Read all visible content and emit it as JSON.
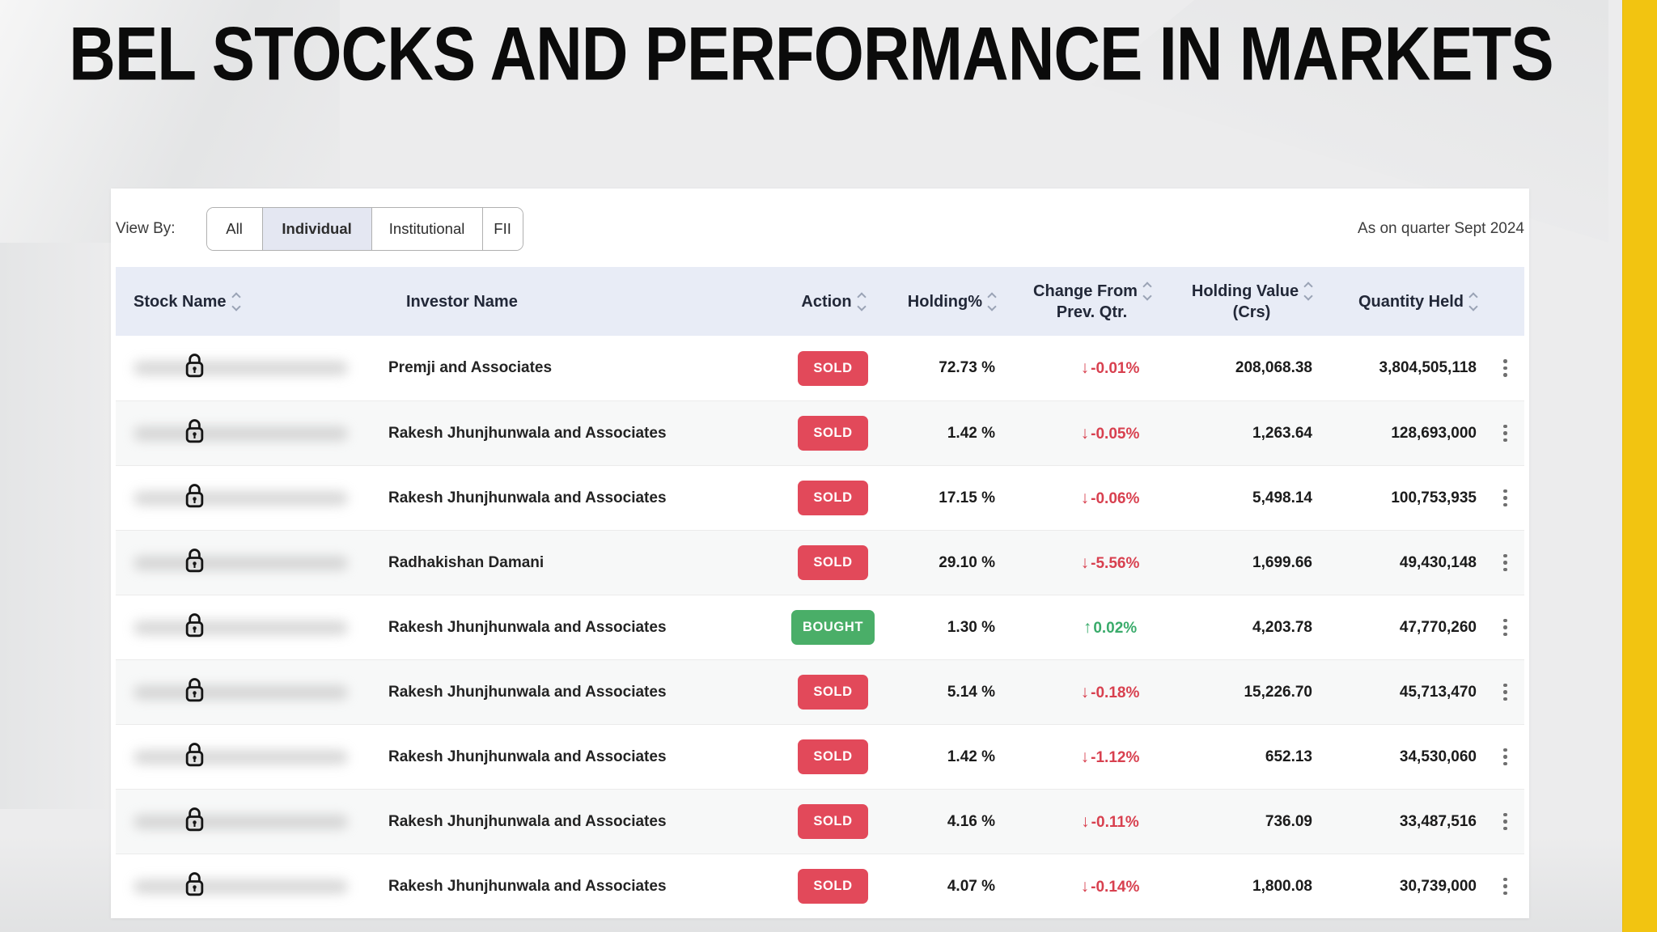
{
  "page": {
    "title": "BEL STOCKS AND PERFORMANCE IN MARKETS"
  },
  "filter": {
    "label": "View By:",
    "options": [
      {
        "label": "All",
        "selected": false
      },
      {
        "label": "Individual",
        "selected": true
      },
      {
        "label": "Institutional",
        "selected": false
      },
      {
        "label": "FII",
        "selected": false
      }
    ],
    "as_on": "As on quarter Sept 2024"
  },
  "table": {
    "columns": [
      {
        "label": "Stock Name",
        "sortable": true,
        "align": "left"
      },
      {
        "label": "Investor Name",
        "sortable": false,
        "align": "left"
      },
      {
        "label": "Action",
        "sortable": true,
        "align": "center"
      },
      {
        "label": "Holding%",
        "sortable": true,
        "align": "right"
      },
      {
        "label": "Change From",
        "label2": "Prev. Qtr.",
        "sortable": true,
        "align": "center"
      },
      {
        "label": "Holding Value",
        "label2": "(Crs)",
        "sortable": true,
        "align": "center"
      },
      {
        "label": "Quantity Held",
        "sortable": true,
        "align": "right"
      }
    ],
    "rows": [
      {
        "stock_locked": true,
        "investor": "Premji and Associates",
        "action": "SOLD",
        "holding": "72.73 %",
        "change_arrow": "↓",
        "change": "-0.01%",
        "change_dir": "down",
        "holding_value": "208,068.38",
        "quantity": "3,804,505,118"
      },
      {
        "stock_locked": true,
        "investor": "Rakesh Jhunjhunwala and Associates",
        "action": "SOLD",
        "holding": "1.42 %",
        "change_arrow": "↓",
        "change": "-0.05%",
        "change_dir": "down",
        "holding_value": "1,263.64",
        "quantity": "128,693,000"
      },
      {
        "stock_locked": true,
        "investor": "Rakesh Jhunjhunwala and Associates",
        "action": "SOLD",
        "holding": "17.15 %",
        "change_arrow": "↓",
        "change": "-0.06%",
        "change_dir": "down",
        "holding_value": "5,498.14",
        "quantity": "100,753,935"
      },
      {
        "stock_locked": true,
        "investor": "Radhakishan Damani",
        "action": "SOLD",
        "holding": "29.10 %",
        "change_arrow": "↓",
        "change": "-5.56%",
        "change_dir": "down",
        "holding_value": "1,699.66",
        "quantity": "49,430,148"
      },
      {
        "stock_locked": true,
        "investor": "Rakesh Jhunjhunwala and Associates",
        "action": "BOUGHT",
        "holding": "1.30 %",
        "change_arrow": "↑",
        "change": "0.02%",
        "change_dir": "up",
        "holding_value": "4,203.78",
        "quantity": "47,770,260"
      },
      {
        "stock_locked": true,
        "investor": "Rakesh Jhunjhunwala and Associates",
        "action": "SOLD",
        "holding": "5.14 %",
        "change_arrow": "↓",
        "change": "-0.18%",
        "change_dir": "down",
        "holding_value": "15,226.70",
        "quantity": "45,713,470"
      },
      {
        "stock_locked": true,
        "investor": "Rakesh Jhunjhunwala and Associates",
        "action": "SOLD",
        "holding": "1.42 %",
        "change_arrow": "↓",
        "change": "-1.12%",
        "change_dir": "down",
        "holding_value": "652.13",
        "quantity": "34,530,060"
      },
      {
        "stock_locked": true,
        "investor": "Rakesh Jhunjhunwala and Associates",
        "action": "SOLD",
        "holding": "4.16 %",
        "change_arrow": "↓",
        "change": "-0.11%",
        "change_dir": "down",
        "holding_value": "736.09",
        "quantity": "33,487,516"
      },
      {
        "stock_locked": true,
        "investor": "Rakesh Jhunjhunwala and Associates",
        "action": "SOLD",
        "holding": "4.07 %",
        "change_arrow": "↓",
        "change": "-0.14%",
        "change_dir": "down",
        "holding_value": "1,800.08",
        "quantity": "30,739,000"
      }
    ]
  },
  "colors": {
    "accent_bar": "#F2C411",
    "sold_badge": "#E2495A",
    "bought_badge": "#4AAE68",
    "change_down": "#D8404F",
    "change_up": "#3AAB6B",
    "header_bg": "#E8ECF6"
  }
}
